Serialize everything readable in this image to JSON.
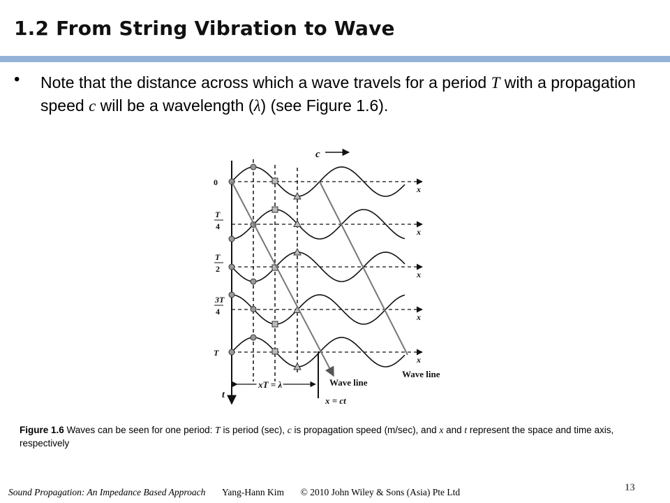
{
  "slide": {
    "title": "1.2 From String Vibration to Wave",
    "bullet": {
      "t1": "Note that the distance across which a wave travels for a period ",
      "t_sym": "T",
      "t2": " with a propagation speed ",
      "c_sym": "c",
      "t3": " will be a wavelength (",
      "lambda_sym": "λ",
      "t4": ") (see Figure 1.6)."
    }
  },
  "figure": {
    "speed_label": "c",
    "x_label": "x",
    "t_label": "t",
    "row_labels": [
      {
        "num": "0",
        "den": ""
      },
      {
        "num": "T",
        "den": "4"
      },
      {
        "num": "T",
        "den": "2"
      },
      {
        "num": "3T",
        "den": "4"
      },
      {
        "num": "T",
        "den": ""
      }
    ],
    "wavelength_label": "xT = λ",
    "wave_line_label_1": "Wave line",
    "wave_line_label_2": "Wave line",
    "wave_line_eq": "x = ct"
  },
  "caption": {
    "fig_label": "Figure 1.6",
    "c1": " Waves can be seen for one period: ",
    "T": "T",
    "c2": " is period (sec), ",
    "c": "c",
    "c3": " is propagation speed (m/sec), and ",
    "x": "x",
    "c4": " and ",
    "t": "t",
    "c5": " represent the space and time axis, respectively"
  },
  "footer": {
    "book": "Sound Propagation: An Impedance Based Approach",
    "author": "Yang-Hann Kim",
    "copyright": "© 2010 John Wiley & Sons (Asia) Pte Ltd",
    "page": "13"
  }
}
